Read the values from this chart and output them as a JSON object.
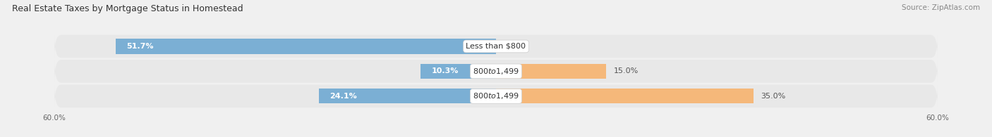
{
  "title": "Real Estate Taxes by Mortgage Status in Homestead",
  "source": "Source: ZipAtlas.com",
  "rows": [
    {
      "label": "Less than $800",
      "without_mortgage": 51.7,
      "with_mortgage": 0.0
    },
    {
      "label": "$800 to $1,499",
      "without_mortgage": 10.3,
      "with_mortgage": 15.0
    },
    {
      "label": "$800 to $1,499",
      "without_mortgage": 24.1,
      "with_mortgage": 35.0
    }
  ],
  "x_max": 60.0,
  "color_without": "#7bafd4",
  "color_with": "#f5b87a",
  "color_bg_row": "#e8e8e8",
  "color_bg_fig": "#f0f0f0",
  "title_fontsize": 9.0,
  "source_fontsize": 7.5,
  "pct_fontsize": 8.0,
  "label_fontsize": 8.0,
  "legend_fontsize": 8.0,
  "bar_height": 0.6
}
